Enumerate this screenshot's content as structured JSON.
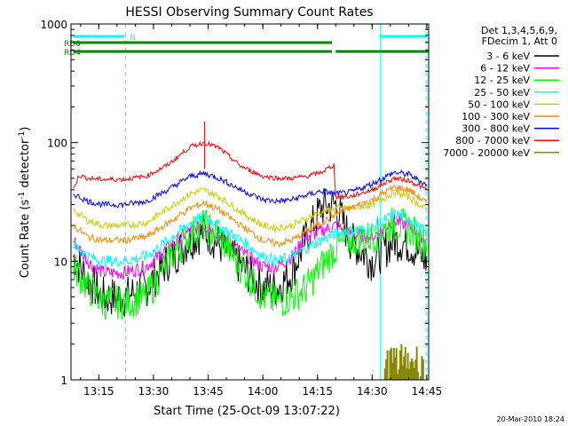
{
  "chart_data": {
    "type": "line",
    "title": "HESSI Observing Summary Count Rates",
    "xlabel": "Start Time (25-Oct-09 13:07:22)",
    "ylabel_main": "Count Rate (s",
    "ylabel_sup1": "-1",
    "ylabel_mid": " detector",
    "ylabel_sup2": "-1",
    "ylabel_end": ")",
    "footer": "20-Mar-2010 18:24",
    "x_range_min": [
      7.37,
      105.5
    ],
    "y_range": [
      1,
      1000
    ],
    "y_scale": "log",
    "x_ticks": [
      {
        "label": "13:15",
        "t": 15
      },
      {
        "label": "13:30",
        "t": 30
      },
      {
        "label": "13:45",
        "t": 45
      },
      {
        "label": "14:00",
        "t": 60
      },
      {
        "label": "14:15",
        "t": 75
      },
      {
        "label": "14:30",
        "t": 90
      },
      {
        "label": "14:45",
        "t": 105
      }
    ],
    "y_ticks": [
      {
        "label": "1",
        "v": 1
      },
      {
        "label": "10",
        "v": 10
      },
      {
        "label": "100",
        "v": 100
      },
      {
        "label": "1000",
        "v": 1000
      }
    ],
    "legend_header": [
      "Det 1,3,4,5,6,9,",
      "FDecim 1, Att 0"
    ],
    "legend_position": "right",
    "series": [
      {
        "name": "3 - 6 keV",
        "color": "#000000",
        "points": [
          [
            8,
            11
          ],
          [
            12,
            7
          ],
          [
            16,
            5
          ],
          [
            22,
            5
          ],
          [
            28,
            6
          ],
          [
            34,
            10
          ],
          [
            40,
            15
          ],
          [
            44,
            18
          ],
          [
            48,
            14
          ],
          [
            54,
            9
          ],
          [
            60,
            6
          ],
          [
            64,
            6
          ],
          [
            68,
            8
          ],
          [
            72,
            16
          ],
          [
            76,
            28
          ],
          [
            80,
            30
          ],
          [
            84,
            15
          ],
          [
            90,
            10
          ],
          [
            96,
            15
          ],
          [
            100,
            14
          ],
          [
            105,
            10
          ]
        ]
      },
      {
        "name": "6 - 12 keV",
        "color": "#ff00ff",
        "points": [
          [
            8,
            15
          ],
          [
            12,
            10
          ],
          [
            16,
            8
          ],
          [
            22,
            8
          ],
          [
            28,
            9
          ],
          [
            34,
            13
          ],
          [
            40,
            18
          ],
          [
            44,
            20
          ],
          [
            48,
            17
          ],
          [
            54,
            12
          ],
          [
            60,
            9
          ],
          [
            64,
            9
          ],
          [
            68,
            11
          ],
          [
            72,
            16
          ],
          [
            76,
            18
          ],
          [
            80,
            20
          ],
          [
            84,
            17
          ],
          [
            90,
            16
          ],
          [
            96,
            22
          ],
          [
            100,
            20
          ],
          [
            105,
            15
          ]
        ]
      },
      {
        "name": "12 - 25 keV",
        "color": "#00ff00",
        "points": [
          [
            8,
            9
          ],
          [
            12,
            6
          ],
          [
            16,
            4.5
          ],
          [
            22,
            4.5
          ],
          [
            28,
            5
          ],
          [
            34,
            10
          ],
          [
            40,
            17
          ],
          [
            44,
            20
          ],
          [
            48,
            16
          ],
          [
            54,
            9
          ],
          [
            60,
            5
          ],
          [
            64,
            4.5
          ],
          [
            68,
            5
          ],
          [
            72,
            6
          ],
          [
            76,
            9
          ],
          [
            80,
            13
          ],
          [
            84,
            15
          ],
          [
            90,
            16
          ],
          [
            96,
            21
          ],
          [
            100,
            19
          ],
          [
            105,
            14
          ]
        ]
      },
      {
        "name": "25 - 50 keV",
        "color": "#00ffff",
        "points": [
          [
            8,
            14
          ],
          [
            12,
            11
          ],
          [
            16,
            10
          ],
          [
            22,
            10
          ],
          [
            28,
            11
          ],
          [
            34,
            15
          ],
          [
            40,
            21
          ],
          [
            44,
            24
          ],
          [
            48,
            20
          ],
          [
            54,
            15
          ],
          [
            60,
            11
          ],
          [
            64,
            10
          ],
          [
            68,
            11
          ],
          [
            72,
            13
          ],
          [
            76,
            15
          ],
          [
            80,
            17
          ],
          [
            84,
            18
          ],
          [
            90,
            19
          ],
          [
            96,
            25
          ],
          [
            100,
            23
          ],
          [
            105,
            17
          ]
        ]
      },
      {
        "name": "50 - 100 keV",
        "color": "#cccc00",
        "points": [
          [
            8,
            27
          ],
          [
            12,
            22
          ],
          [
            16,
            20
          ],
          [
            22,
            20
          ],
          [
            28,
            21
          ],
          [
            34,
            28
          ],
          [
            40,
            37
          ],
          [
            44,
            40
          ],
          [
            48,
            35
          ],
          [
            54,
            26
          ],
          [
            60,
            20
          ],
          [
            64,
            19
          ],
          [
            68,
            20
          ],
          [
            72,
            23
          ],
          [
            76,
            26
          ],
          [
            80,
            28
          ],
          [
            84,
            28
          ],
          [
            90,
            30
          ],
          [
            96,
            38
          ],
          [
            100,
            35
          ],
          [
            105,
            27
          ]
        ]
      },
      {
        "name": "100 - 300 keV",
        "color": "#ff8800",
        "points": [
          [
            8,
            20
          ],
          [
            12,
            16
          ],
          [
            16,
            15
          ],
          [
            22,
            15
          ],
          [
            28,
            16
          ],
          [
            34,
            21
          ],
          [
            40,
            28
          ],
          [
            44,
            31
          ],
          [
            48,
            27
          ],
          [
            54,
            20
          ],
          [
            60,
            15
          ],
          [
            64,
            14
          ],
          [
            68,
            15
          ],
          [
            72,
            18
          ],
          [
            76,
            21
          ],
          [
            80,
            25
          ],
          [
            84,
            28
          ],
          [
            90,
            33
          ],
          [
            96,
            42
          ],
          [
            100,
            40
          ],
          [
            105,
            31
          ]
        ]
      },
      {
        "name": "300 - 800 keV",
        "color": "#0000ff",
        "points": [
          [
            8,
            37
          ],
          [
            12,
            32
          ],
          [
            16,
            30
          ],
          [
            22,
            30
          ],
          [
            28,
            32
          ],
          [
            34,
            40
          ],
          [
            40,
            52
          ],
          [
            44,
            55
          ],
          [
            48,
            50
          ],
          [
            54,
            40
          ],
          [
            60,
            33
          ],
          [
            64,
            32
          ],
          [
            68,
            33
          ],
          [
            72,
            36
          ],
          [
            76,
            39
          ],
          [
            80,
            37
          ],
          [
            84,
            38
          ],
          [
            90,
            45
          ],
          [
            96,
            56
          ],
          [
            100,
            54
          ],
          [
            105,
            44
          ]
        ]
      },
      {
        "name": "800 - 7000 keV",
        "color": "#ff0000",
        "points": [
          [
            8,
            40
          ],
          [
            9.5,
            53
          ],
          [
            12,
            50
          ],
          [
            16,
            49
          ],
          [
            22,
            49
          ],
          [
            28,
            52
          ],
          [
            34,
            65
          ],
          [
            40,
            92
          ],
          [
            44,
            100
          ],
          [
            48,
            90
          ],
          [
            54,
            63
          ],
          [
            60,
            52
          ],
          [
            64,
            50
          ],
          [
            68,
            50
          ],
          [
            72,
            52
          ],
          [
            76,
            56
          ],
          [
            79.5,
            65
          ],
          [
            80,
            35
          ],
          [
            84,
            35
          ],
          [
            90,
            40
          ],
          [
            96,
            50
          ],
          [
            100,
            48
          ],
          [
            105,
            40
          ]
        ]
      },
      {
        "name": "7000 - 20000 keV",
        "color": "#888800",
        "points": [
          [
            93,
            1
          ],
          [
            93.5,
            2
          ],
          [
            104,
            2
          ],
          [
            104.5,
            1
          ]
        ]
      }
    ],
    "attenuator_bars": [
      {
        "label": "RD0",
        "color": "#008800",
        "segments": [
          [
            8,
            79
          ]
        ]
      },
      {
        "label": "RD4",
        "color": "#008800",
        "segments": [
          [
            8,
            79
          ],
          [
            80,
            105.5
          ]
        ]
      },
      {
        "label": "N",
        "color": "#00ffff",
        "segments": [
          [
            8,
            22
          ],
          [
            92,
            105
          ]
        ]
      }
    ],
    "marker_lines_min": [
      22.3,
      104.8
    ],
    "solid_cyan_lines_min": [
      7.37,
      92.3
    ],
    "grid": false
  }
}
